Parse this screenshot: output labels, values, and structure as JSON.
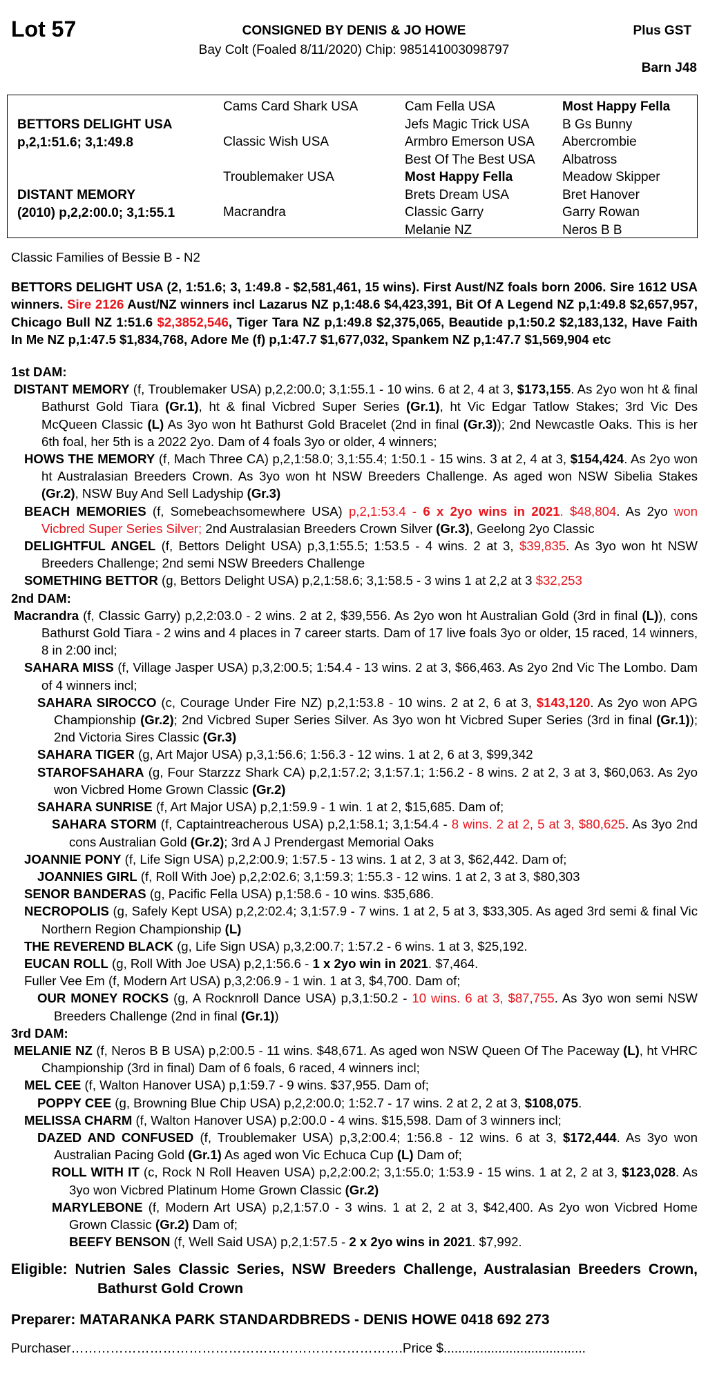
{
  "header": {
    "lot": "Lot 57",
    "consigned": "CONSIGNED BY DENIS & JO HOWE",
    "gst": "Plus GST",
    "subtitle": "Bay Colt (Foaled 8/11/2020) Chip: 985141003098797",
    "barn": "Barn J48"
  },
  "pedigree": {
    "sire": {
      "name": "BETTORS DELIGHT USA",
      "record": "p,2,1:51.6; 3,1:49.8"
    },
    "dam": {
      "name": "DISTANT MEMORY",
      "record": "(2010) p,2,2:00.0; 3,1:55.1"
    },
    "gen2": [
      "Cams Card Shark USA",
      "Classic Wish USA",
      "Troublemaker USA",
      "Macrandra"
    ],
    "gen3": [
      {
        "t": "Cam Fella USA",
        "b": false
      },
      {
        "t": "Jefs Magic Trick USA",
        "b": false
      },
      {
        "t": "Armbro Emerson USA",
        "b": false
      },
      {
        "t": "Best Of The Best USA",
        "b": false
      },
      {
        "t": "Most Happy Fella",
        "b": true
      },
      {
        "t": "Brets Dream USA",
        "b": false
      },
      {
        "t": "Classic Garry",
        "b": false
      },
      {
        "t": "Melanie NZ",
        "b": false
      }
    ],
    "gen4": [
      {
        "t": "Most Happy Fella",
        "b": true
      },
      {
        "t": "B Gs Bunny",
        "b": false
      },
      {
        "t": "Abercrombie",
        "b": false
      },
      {
        "t": "Albatross",
        "b": false
      },
      {
        "t": "Meadow Skipper",
        "b": false
      },
      {
        "t": "Bret Hanover",
        "b": false
      },
      {
        "t": "Garry Rowan",
        "b": false
      },
      {
        "t": "Neros B B",
        "b": false
      }
    ]
  },
  "family": "Classic Families of Bessie B - N2",
  "sire_para": [
    [
      "n",
      "BETTORS DELIGHT USA (2, 1:51.6; 3, 1:49.8 - $2,581,461, 15 wins). First Aust/NZ foals born 2006. Sire 1612 USA winners. "
    ],
    [
      "r",
      "Sire 2126"
    ],
    [
      "n",
      " Aust/NZ winners incl Lazarus NZ p,1:48.6 $4,423,391, Bit Of A Legend NZ p,1:49.8 $2,657,957, Chicago Bull NZ 1:51.6 "
    ],
    [
      "r",
      "$2,3852,546"
    ],
    [
      "n",
      ",  Tiger Tara NZ p,1:49.8 $2,375,065, Beautide p,1:50.2 $2,183,132, Have Faith In Me NZ p,1:47.5 $1,834,768, Adore Me (f) p,1:47.7 $1,677,032, Spankem NZ p,1:47.7 $1,569,904 etc"
    ]
  ],
  "sections": [
    {
      "title": "1st DAM:",
      "entries": [
        {
          "lvl": 0,
          "seg": [
            [
              "b",
              "DISTANT MEMORY"
            ],
            [
              "n",
              " (f, Troublemaker USA) p,2,2:00.0; 3,1:55.1 - 10 wins. 6 at 2, 4 at 3, "
            ],
            [
              "b",
              "$173,155"
            ],
            [
              "n",
              ". As 2yo won ht & final Bathurst Gold Tiara "
            ],
            [
              "b",
              "(Gr.1)"
            ],
            [
              "n",
              ", ht & final Vicbred Super Series "
            ],
            [
              "b",
              "(Gr.1)"
            ],
            [
              "n",
              ", ht Vic Edgar Tatlow Stakes; 3rd Vic Des McQueen Classic "
            ],
            [
              "b",
              "(L)"
            ],
            [
              "n",
              " As 3yo won ht Bathurst Gold Bracelet (2nd in final "
            ],
            [
              "b",
              "(Gr.3)"
            ],
            [
              "n",
              "); 2nd Newcastle Oaks. This is her 6th foal, her 5th is a 2022 2yo. Dam of 4 foals 3yo or older, 4 winners;"
            ]
          ]
        },
        {
          "lvl": 1,
          "seg": [
            [
              "b",
              "HOWS THE MEMORY"
            ],
            [
              "n",
              " (f, Mach Three CA) p,2,1:58.0; 3,1:55.4; 1:50.1 - 15 wins. 3 at 2, 4 at 3, "
            ],
            [
              "b",
              "$154,424"
            ],
            [
              "n",
              ". As 2yo won ht Australasian Breeders Crown. As 3yo won ht NSW Breeders Challenge. As aged won NSW Sibelia Stakes "
            ],
            [
              "b",
              "(Gr.2)"
            ],
            [
              "n",
              ", NSW Buy And Sell Ladyship "
            ],
            [
              "b",
              "(Gr.3)"
            ]
          ]
        },
        {
          "lvl": 1,
          "seg": [
            [
              "b",
              "BEACH MEMORIES"
            ],
            [
              "n",
              " (f, Somebeachsomewhere USA) "
            ],
            [
              "r",
              "p,2,1:53.4 - "
            ],
            [
              "rb",
              "6 x 2yo wins in 2021"
            ],
            [
              "r",
              ". $48,804"
            ],
            [
              "n",
              ". As 2yo "
            ],
            [
              "r",
              "won Vicbred Super Series Silver;"
            ],
            [
              "n",
              " 2nd Australasian Breeders Crown Silver "
            ],
            [
              "b",
              "(Gr.3)"
            ],
            [
              "n",
              ", Geelong 2yo Classic"
            ]
          ]
        },
        {
          "lvl": 1,
          "seg": [
            [
              "b",
              "DELIGHTFUL ANGEL"
            ],
            [
              "n",
              " (f, Bettors Delight USA) p,3,1:55.5; 1:53.5 - 4 wins. 2 at 3, "
            ],
            [
              "r",
              "$39,835"
            ],
            [
              "n",
              ". As 3yo won ht NSW Breeders Challenge; 2nd semi NSW Breeders Challenge"
            ]
          ]
        },
        {
          "lvl": 1,
          "seg": [
            [
              "b",
              "SOMETHING BETTOR"
            ],
            [
              "n",
              " (g, Bettors Delight USA) p,2,1:58.6; 3,1:58.5 - 3 wins 1 at 2,2 at 3 "
            ],
            [
              "r",
              "$32,253"
            ]
          ]
        }
      ]
    },
    {
      "title": "2nd DAM:",
      "entries": [
        {
          "lvl": 0,
          "seg": [
            [
              "b",
              "Macrandra"
            ],
            [
              "n",
              " (f, Classic Garry) p,2,2:03.0 - 2 wins. 2 at 2, $39,556. As 2yo won ht Australian Gold (3rd in final "
            ],
            [
              "b",
              "(L)"
            ],
            [
              "n",
              "), cons Bathurst Gold Tiara - 2 wins and 4 places in 7 career starts. Dam of 17 live foals 3yo or older, 15 raced, 14 winners, 8 in 2:00 incl;"
            ]
          ]
        },
        {
          "lvl": 1,
          "seg": [
            [
              "b",
              "SAHARA MISS"
            ],
            [
              "n",
              " (f, Village Jasper USA) p,3,2:00.5; 1:54.4 - 13 wins. 2 at 3, $66,463. As 2yo 2nd Vic The Lombo. Dam of 4 winners incl;"
            ]
          ]
        },
        {
          "lvl": 2,
          "seg": [
            [
              "b",
              "SAHARA SIROCCO"
            ],
            [
              "n",
              " (c, Courage Under Fire NZ) p,2,1:53.8 - 10 wins. 2 at 2, 6 at 3, "
            ],
            [
              "rb",
              "$143,120"
            ],
            [
              "n",
              ". As 2yo won APG Championship "
            ],
            [
              "b",
              "(Gr.2)"
            ],
            [
              "n",
              "; 2nd Vicbred Super Series Silver. As 3yo won ht Vicbred Super Series (3rd in final "
            ],
            [
              "b",
              "(Gr.1)"
            ],
            [
              "n",
              "); 2nd Victoria Sires Classic "
            ],
            [
              "b",
              "(Gr.3)"
            ]
          ]
        },
        {
          "lvl": 2,
          "seg": [
            [
              "b",
              "SAHARA TIGER"
            ],
            [
              "n",
              " (g, Art Major USA) p,3,1:56.6; 1:56.3 - 12 wins. 1 at 2, 6 at 3, $99,342"
            ]
          ]
        },
        {
          "lvl": 2,
          "seg": [
            [
              "b",
              "STAROFSAHARA"
            ],
            [
              "n",
              " (g, Four Starzzz Shark CA) p,2,1:57.2; 3,1:57.1; 1:56.2 - 8 wins. 2 at 2, 3 at 3, $60,063. As 2yo won Vicbred Home Grown Classic "
            ],
            [
              "b",
              "(Gr.2)"
            ]
          ]
        },
        {
          "lvl": 2,
          "seg": [
            [
              "b",
              "SAHARA SUNRISE"
            ],
            [
              "n",
              " (f, Art Major USA) p,2,1:59.9 - 1 win. 1 at 2, $15,685. Dam of;"
            ]
          ]
        },
        {
          "lvl": 3,
          "seg": [
            [
              "b",
              "SAHARA STORM"
            ],
            [
              "n",
              " (f, Captaintreacherous USA) p,2,1:58.1; 3,1:54.4 - "
            ],
            [
              "r",
              "8 wins. 2 at 2, 5 at 3, $80,625"
            ],
            [
              "n",
              ". As 3yo 2nd cons Australian Gold "
            ],
            [
              "b",
              "(Gr.2)"
            ],
            [
              "n",
              "; 3rd A J Prendergast Memorial Oaks"
            ]
          ]
        },
        {
          "lvl": 1,
          "seg": [
            [
              "b",
              "JOANNIE PONY"
            ],
            [
              "n",
              " (f, Life Sign USA) p,2,2:00.9; 1:57.5 - 13 wins. 1 at 2, 3 at 3, $62,442. Dam of;"
            ]
          ]
        },
        {
          "lvl": 2,
          "seg": [
            [
              "b",
              "JOANNIES GIRL"
            ],
            [
              "n",
              " (f, Roll With Joe) p,2,2:02.6; 3,1:59.3; 1:55.3 - 12 wins. 1 at 2, 3 at 3, $80,303"
            ]
          ]
        },
        {
          "lvl": 1,
          "seg": [
            [
              "b",
              "SENOR BANDERAS"
            ],
            [
              "n",
              " (g, Pacific Fella USA) p,1:58.6 - 10 wins. $35,686."
            ]
          ]
        },
        {
          "lvl": 1,
          "seg": [
            [
              "b",
              "NECROPOLIS"
            ],
            [
              "n",
              " (g, Safely Kept USA) p,2,2:02.4; 3,1:57.9 - 7 wins. 1 at 2, 5 at 3, $33,305. As aged 3rd semi & final Vic Northern Region Championship "
            ],
            [
              "b",
              "(L)"
            ]
          ]
        },
        {
          "lvl": 1,
          "seg": [
            [
              "b",
              "THE REVEREND BLACK"
            ],
            [
              "n",
              " (g, Life Sign USA) p,3,2:00.7; 1:57.2 - 6 wins. 1 at 3, $25,192."
            ]
          ]
        },
        {
          "lvl": 1,
          "seg": [
            [
              "b",
              "EUCAN ROLL"
            ],
            [
              "n",
              " (g, Roll With Joe USA) p,2,1:56.6 - "
            ],
            [
              "b",
              "1 x 2yo win in 2021"
            ],
            [
              "n",
              ". $7,464."
            ]
          ]
        },
        {
          "lvl": 1,
          "seg": [
            [
              "n",
              "Fuller Vee Em (f, Modern Art USA) p,3,2:06.9 - 1 win. 1 at 3, $4,700. Dam of;"
            ]
          ]
        },
        {
          "lvl": 2,
          "seg": [
            [
              "b",
              "OUR MONEY ROCKS"
            ],
            [
              "n",
              " (g, A Rocknroll Dance USA) p,3,1:50.2 - "
            ],
            [
              "r",
              "10 wins. 6 at 3, $87,755"
            ],
            [
              "n",
              ". As 3yo won semi NSW Breeders Challenge (2nd in final "
            ],
            [
              "b",
              "(Gr.1)"
            ],
            [
              "n",
              ")"
            ]
          ]
        }
      ]
    },
    {
      "title": "3rd DAM:",
      "entries": [
        {
          "lvl": 0,
          "seg": [
            [
              "b",
              "MELANIE NZ"
            ],
            [
              "n",
              " (f, Neros B B USA) p,2:00.5 - 11 wins. $48,671. As aged won NSW Queen Of The Paceway "
            ],
            [
              "b",
              "(L)"
            ],
            [
              "n",
              ", ht VHRC Championship (3rd in final) Dam of 6 foals, 6 raced, 4 winners incl;"
            ]
          ]
        },
        {
          "lvl": 1,
          "seg": [
            [
              "b",
              "MEL CEE"
            ],
            [
              "n",
              " (f, Walton Hanover USA) p,1:59.7 - 9 wins. $37,955. Dam of;"
            ]
          ]
        },
        {
          "lvl": 2,
          "seg": [
            [
              "b",
              "POPPY CEE"
            ],
            [
              "n",
              " (g, Browning Blue Chip USA) p,2,2:00.0; 1:52.7 - 17 wins. 2 at 2, 2 at 3, "
            ],
            [
              "b",
              "$108,075"
            ],
            [
              "n",
              "."
            ]
          ]
        },
        {
          "lvl": 1,
          "seg": [
            [
              "b",
              "MELISSA CHARM"
            ],
            [
              "n",
              " (f, Walton Hanover USA) p,2:00.0 - 4 wins. $15,598. Dam of 3 winners incl;"
            ]
          ]
        },
        {
          "lvl": 2,
          "seg": [
            [
              "b",
              "DAZED AND CONFUSED"
            ],
            [
              "n",
              " (f, Troublemaker USA) p,3,2:00.4; 1:56.8 - 12 wins. 6 at 3, "
            ],
            [
              "b",
              "$172,444"
            ],
            [
              "n",
              ". As 3yo won Australian Pacing Gold "
            ],
            [
              "b",
              "(Gr.1)"
            ],
            [
              "n",
              " As aged won Vic Echuca Cup "
            ],
            [
              "b",
              "(L)"
            ],
            [
              "n",
              " Dam of;"
            ]
          ]
        },
        {
          "lvl": 3,
          "seg": [
            [
              "b",
              "ROLL WITH IT"
            ],
            [
              "n",
              " (c, Rock N Roll Heaven USA) p,2,2:00.2; 3,1:55.0; 1:53.9 - 15 wins. 1 at 2, 2 at 3, "
            ],
            [
              "b",
              "$123,028"
            ],
            [
              "n",
              ". As 3yo won Vicbred Platinum Home Grown Classic "
            ],
            [
              "b",
              "(Gr.2)"
            ]
          ]
        },
        {
          "lvl": 3,
          "seg": [
            [
              "b",
              "MARYLEBONE"
            ],
            [
              "n",
              " (f, Modern Art USA) p,2,1:57.0 - 3 wins. 1 at 2, 2 at 3, $42,400. As 2yo won Vicbred Home Grown Classic "
            ],
            [
              "b",
              "(Gr.2)"
            ],
            [
              "n",
              " Dam of;"
            ]
          ]
        },
        {
          "lvl": 4,
          "seg": [
            [
              "b",
              "BEEFY BENSON"
            ],
            [
              "n",
              " (f, Well Said USA) p,2,1:57.5 - "
            ],
            [
              "b",
              "2 x 2yo wins in 2021"
            ],
            [
              "n",
              ". $7,992."
            ]
          ]
        }
      ]
    }
  ],
  "eligible": "Eligible: Nutrien Sales Classic Series, NSW Breeders Challenge, Australasian Breeders Crown, Bathurst Gold Crown",
  "preparer": "Preparer: MATARANKA PARK STANDARDBREDS - DENIS HOWE 0418 692 273",
  "purchaser": {
    "label": "Purchaser",
    "dots": "………………………………………………………………….",
    "price_label": "Price $",
    "price_dots": "......................................."
  },
  "colors": {
    "highlight": "#e8141b",
    "text": "#000000"
  }
}
